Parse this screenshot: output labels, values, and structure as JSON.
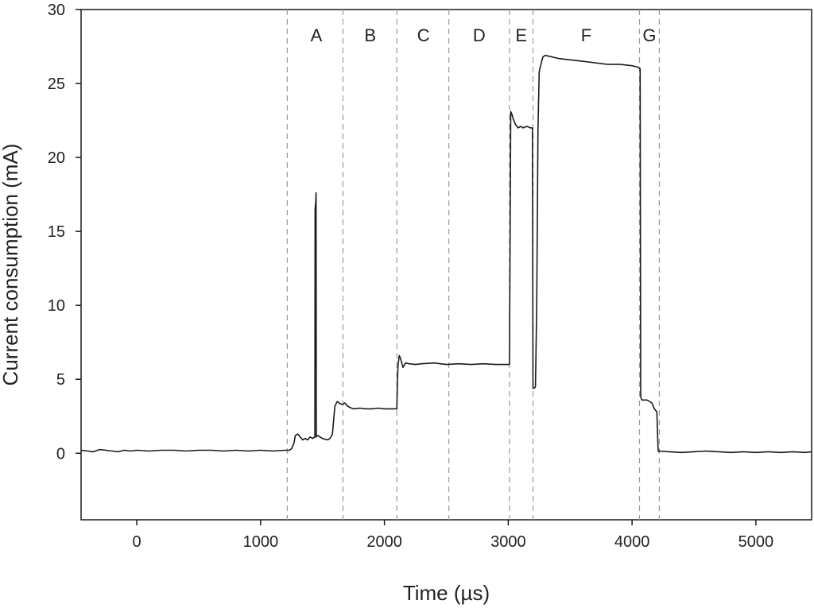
{
  "chart_data": {
    "type": "line",
    "title": "",
    "xlabel": "Time (µs)",
    "ylabel": "Current consumption (mA)",
    "xlim": [
      -450,
      5450
    ],
    "ylim": [
      -4.5,
      30
    ],
    "xticks": [
      0,
      1000,
      2000,
      3000,
      4000,
      5000
    ],
    "yticks": [
      0,
      5,
      10,
      15,
      20,
      25,
      30
    ],
    "grid": false,
    "legend": "none",
    "line_color": "#1a1a1a",
    "divider_color": "#9a9a9a",
    "phase_dividers": [
      1215,
      1665,
      2100,
      2520,
      3010,
      3200,
      4060,
      4220
    ],
    "phases": [
      {
        "label": "A",
        "x": 1450
      },
      {
        "label": "B",
        "x": 1885
      },
      {
        "label": "C",
        "x": 2315
      },
      {
        "label": "D",
        "x": 2765
      },
      {
        "label": "E",
        "x": 3105
      },
      {
        "label": "F",
        "x": 3630
      },
      {
        "label": "G",
        "x": 4140
      }
    ],
    "series": [
      {
        "x": [
          -450,
          -400,
          -350,
          -300,
          -250,
          -200,
          -150,
          -100,
          -50,
          0,
          100,
          200,
          300,
          400,
          500,
          600,
          700,
          800,
          900,
          1000,
          1100,
          1200,
          1230,
          1250,
          1270,
          1280,
          1300,
          1320,
          1340,
          1360,
          1380,
          1400,
          1420,
          1438,
          1440,
          1445,
          1448,
          1450,
          1455,
          1460,
          1480,
          1500,
          1520,
          1540,
          1560,
          1580,
          1600,
          1620,
          1640,
          1660,
          1680,
          1700,
          1720,
          1750,
          1800,
          1850,
          1900,
          1950,
          2000,
          2050,
          2090,
          2100,
          2105,
          2110,
          2120,
          2130,
          2150,
          2170,
          2200,
          2250,
          2300,
          2400,
          2500,
          2600,
          2700,
          2800,
          2900,
          3000,
          3010,
          3020,
          3030,
          3040,
          3050,
          3060,
          3080,
          3100,
          3120,
          3150,
          3180,
          3195,
          3200,
          3210,
          3220,
          3230,
          3240,
          3250,
          3270,
          3280,
          3300,
          3350,
          3400,
          3500,
          3600,
          3700,
          3800,
          3900,
          4000,
          4050,
          4060,
          4065,
          4070,
          4080,
          4100,
          4120,
          4140,
          4160,
          4180,
          4190,
          4200,
          4210,
          4215,
          4220,
          4300,
          4400,
          4500,
          4600,
          4700,
          4800,
          4900,
          5000,
          5100,
          5200,
          5300,
          5400,
          5450
        ],
        "y": [
          0.2,
          0.15,
          0.1,
          0.25,
          0.2,
          0.15,
          0.1,
          0.2,
          0.15,
          0.2,
          0.15,
          0.2,
          0.2,
          0.15,
          0.2,
          0.2,
          0.15,
          0.2,
          0.15,
          0.2,
          0.15,
          0.2,
          0.2,
          0.3,
          0.7,
          1.2,
          1.3,
          1.1,
          0.9,
          1.0,
          0.9,
          1.1,
          1.0,
          1.1,
          16.5,
          17.0,
          17.6,
          1.1,
          1.2,
          1.2,
          1.1,
          1.0,
          0.95,
          0.9,
          1.0,
          1.3,
          3.2,
          3.5,
          3.35,
          3.3,
          3.4,
          3.2,
          3.1,
          3.0,
          3.05,
          3.0,
          3.0,
          3.05,
          3.0,
          3.0,
          3.0,
          3.0,
          5.0,
          6.0,
          6.6,
          6.4,
          5.8,
          6.1,
          6.05,
          6.0,
          6.05,
          6.1,
          6.0,
          6.05,
          6.0,
          6.05,
          6.0,
          6.0,
          6.0,
          23.1,
          22.9,
          22.6,
          22.4,
          22.2,
          22.0,
          22.1,
          22.0,
          22.1,
          22.0,
          22.0,
          4.4,
          4.4,
          4.5,
          10.0,
          22.0,
          25.8,
          26.5,
          26.8,
          26.9,
          26.8,
          26.7,
          26.6,
          26.5,
          26.4,
          26.3,
          26.3,
          26.2,
          26.1,
          26.0,
          26.0,
          3.8,
          3.6,
          3.6,
          3.6,
          3.5,
          3.4,
          3.0,
          2.9,
          2.8,
          0.2,
          0.1,
          0.15,
          0.1,
          0.05,
          0.1,
          0.15,
          0.1,
          0.05,
          0.1,
          0.05,
          0.1,
          0.05,
          0.1,
          0.05,
          0.1
        ]
      }
    ]
  }
}
